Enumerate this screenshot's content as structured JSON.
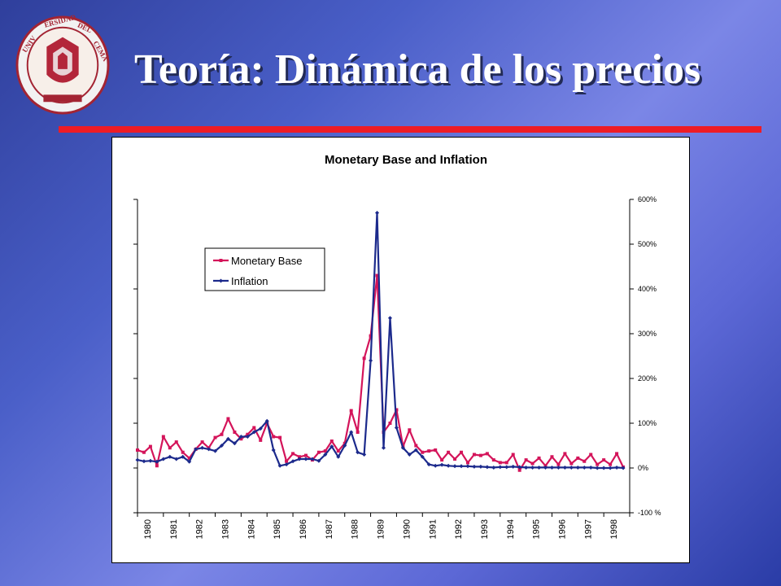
{
  "header": {
    "title": "Teoría: Dinámica de los precios"
  },
  "logo": {
    "text": "UNIVERSIDAD DEL CEMA"
  },
  "colors": {
    "accent_rule": "#ee1c25",
    "monetary_base": "#d4145a",
    "inflation": "#1c2a8c"
  },
  "chart_data": {
    "type": "line",
    "title": "Monetary Base and Inflation",
    "xlabel": "",
    "ylabel": "",
    "ylim": [
      -100,
      600
    ],
    "y_ticks": [
      {
        "value": 600,
        "label": "600%"
      },
      {
        "value": 500,
        "label": "500%"
      },
      {
        "value": 400,
        "label": "400%"
      },
      {
        "value": 300,
        "label": "300%"
      },
      {
        "value": 200,
        "label": "200%"
      },
      {
        "value": 100,
        "label": "100%"
      },
      {
        "value": 0,
        "label": "0%"
      },
      {
        "value": -100,
        "label": "-100 %"
      }
    ],
    "x_tick_labels": [
      "1980",
      "1981",
      "1982",
      "1983",
      "1984",
      "1985",
      "1986",
      "1987",
      "1988",
      "1989",
      "1990",
      "1991",
      "1992",
      "1993",
      "1994",
      "1995",
      "1996",
      "1997",
      "1998"
    ],
    "x_range": [
      1980,
      1999
    ],
    "grid": false,
    "legend": {
      "position": "top-left",
      "entries": [
        "Monetary Base",
        "Inflation"
      ]
    },
    "series": [
      {
        "name": "Monetary Base",
        "color": "#d4145a",
        "points": [
          [
            1980.0,
            40
          ],
          [
            1980.25,
            35
          ],
          [
            1980.5,
            48
          ],
          [
            1980.75,
            5
          ],
          [
            1981.0,
            70
          ],
          [
            1981.25,
            45
          ],
          [
            1981.5,
            58
          ],
          [
            1981.75,
            35
          ],
          [
            1982.0,
            22
          ],
          [
            1982.25,
            42
          ],
          [
            1982.5,
            58
          ],
          [
            1982.75,
            45
          ],
          [
            1983.0,
            68
          ],
          [
            1983.25,
            75
          ],
          [
            1983.5,
            110
          ],
          [
            1983.75,
            80
          ],
          [
            1984.0,
            65
          ],
          [
            1984.25,
            75
          ],
          [
            1984.5,
            90
          ],
          [
            1984.75,
            62
          ],
          [
            1985.0,
            100
          ],
          [
            1985.25,
            70
          ],
          [
            1985.5,
            68
          ],
          [
            1985.75,
            15
          ],
          [
            1986.0,
            32
          ],
          [
            1986.25,
            25
          ],
          [
            1986.5,
            28
          ],
          [
            1986.75,
            18
          ],
          [
            1987.0,
            35
          ],
          [
            1987.25,
            38
          ],
          [
            1987.5,
            60
          ],
          [
            1987.75,
            38
          ],
          [
            1988.0,
            55
          ],
          [
            1988.25,
            128
          ],
          [
            1988.5,
            80
          ],
          [
            1988.75,
            245
          ],
          [
            1989.0,
            295
          ],
          [
            1989.25,
            430
          ],
          [
            1989.5,
            80
          ],
          [
            1989.75,
            100
          ],
          [
            1990.0,
            130
          ],
          [
            1990.25,
            48
          ],
          [
            1990.5,
            85
          ],
          [
            1990.75,
            50
          ],
          [
            1991.0,
            35
          ],
          [
            1991.25,
            38
          ],
          [
            1991.5,
            40
          ],
          [
            1991.75,
            18
          ],
          [
            1992.0,
            35
          ],
          [
            1992.25,
            20
          ],
          [
            1992.5,
            35
          ],
          [
            1992.75,
            12
          ],
          [
            1993.0,
            30
          ],
          [
            1993.25,
            28
          ],
          [
            1993.5,
            32
          ],
          [
            1993.75,
            18
          ],
          [
            1994.0,
            12
          ],
          [
            1994.25,
            12
          ],
          [
            1994.5,
            30
          ],
          [
            1994.75,
            -5
          ],
          [
            1995.0,
            18
          ],
          [
            1995.25,
            10
          ],
          [
            1995.5,
            22
          ],
          [
            1995.75,
            5
          ],
          [
            1996.0,
            25
          ],
          [
            1996.25,
            8
          ],
          [
            1996.5,
            32
          ],
          [
            1996.75,
            10
          ],
          [
            1997.0,
            22
          ],
          [
            1997.25,
            15
          ],
          [
            1997.5,
            30
          ],
          [
            1997.75,
            8
          ],
          [
            1998.0,
            18
          ],
          [
            1998.25,
            8
          ],
          [
            1998.5,
            32
          ],
          [
            1998.75,
            2
          ]
        ]
      },
      {
        "name": "Inflation",
        "color": "#1c2a8c",
        "points": [
          [
            1980.0,
            18
          ],
          [
            1980.25,
            15
          ],
          [
            1980.5,
            16
          ],
          [
            1980.75,
            14
          ],
          [
            1981.0,
            20
          ],
          [
            1981.25,
            25
          ],
          [
            1981.5,
            20
          ],
          [
            1981.75,
            25
          ],
          [
            1982.0,
            14
          ],
          [
            1982.25,
            42
          ],
          [
            1982.5,
            45
          ],
          [
            1982.75,
            42
          ],
          [
            1983.0,
            38
          ],
          [
            1983.25,
            50
          ],
          [
            1983.5,
            65
          ],
          [
            1983.75,
            55
          ],
          [
            1984.0,
            70
          ],
          [
            1984.25,
            70
          ],
          [
            1984.5,
            80
          ],
          [
            1984.75,
            88
          ],
          [
            1985.0,
            105
          ],
          [
            1985.25,
            40
          ],
          [
            1985.5,
            5
          ],
          [
            1985.75,
            8
          ],
          [
            1986.0,
            15
          ],
          [
            1986.25,
            20
          ],
          [
            1986.5,
            20
          ],
          [
            1986.75,
            20
          ],
          [
            1987.0,
            16
          ],
          [
            1987.25,
            30
          ],
          [
            1987.5,
            48
          ],
          [
            1987.75,
            25
          ],
          [
            1988.0,
            50
          ],
          [
            1988.25,
            80
          ],
          [
            1988.5,
            35
          ],
          [
            1988.75,
            30
          ],
          [
            1989.0,
            240
          ],
          [
            1989.25,
            570
          ],
          [
            1989.5,
            45
          ],
          [
            1989.75,
            335
          ],
          [
            1990.0,
            90
          ],
          [
            1990.25,
            45
          ],
          [
            1990.5,
            30
          ],
          [
            1990.75,
            40
          ],
          [
            1991.0,
            25
          ],
          [
            1991.25,
            8
          ],
          [
            1991.5,
            5
          ],
          [
            1991.75,
            7
          ],
          [
            1992.0,
            5
          ],
          [
            1992.25,
            4
          ],
          [
            1992.5,
            4
          ],
          [
            1992.75,
            4
          ],
          [
            1993.0,
            3
          ],
          [
            1993.25,
            3
          ],
          [
            1993.5,
            2
          ],
          [
            1993.75,
            1
          ],
          [
            1994.0,
            2
          ],
          [
            1994.25,
            2
          ],
          [
            1994.5,
            3
          ],
          [
            1994.75,
            2
          ],
          [
            1995.0,
            1
          ],
          [
            1995.25,
            1
          ],
          [
            1995.5,
            1
          ],
          [
            1995.75,
            1
          ],
          [
            1996.0,
            1
          ],
          [
            1996.25,
            1
          ],
          [
            1996.5,
            1
          ],
          [
            1996.75,
            1
          ],
          [
            1997.0,
            1
          ],
          [
            1997.25,
            1
          ],
          [
            1997.5,
            1
          ],
          [
            1997.75,
            0
          ],
          [
            1998.0,
            0
          ],
          [
            1998.25,
            0
          ],
          [
            1998.5,
            1
          ],
          [
            1998.75,
            0
          ]
        ]
      }
    ]
  }
}
